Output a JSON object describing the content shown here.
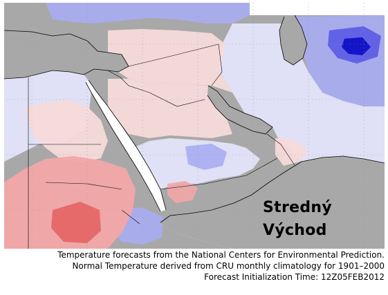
{
  "map": {
    "region_label_line1": "Stredný",
    "region_label_line2": "Východ",
    "colors": {
      "land": "#a8a8a8",
      "water": "#ffffff",
      "warm_light": "#f7dada",
      "warm": "#f2a6a6",
      "warm_strong": "#e46464",
      "cool_light": "#e3e3fa",
      "cool": "#a8acf2",
      "cool_strong": "#5a5ae6",
      "cool_deep": "#1414c8",
      "grid": "#9a9a9a",
      "border": "#000000"
    }
  },
  "caption": {
    "line1": "Temperature forecasts from the National Centers for Environmental Prediction.",
    "line2": "Normal Temperature derived from CRU monthly climatology for 1901–2000",
    "line3": "Forecast Initialization Time: 12Z05FEB2012"
  }
}
